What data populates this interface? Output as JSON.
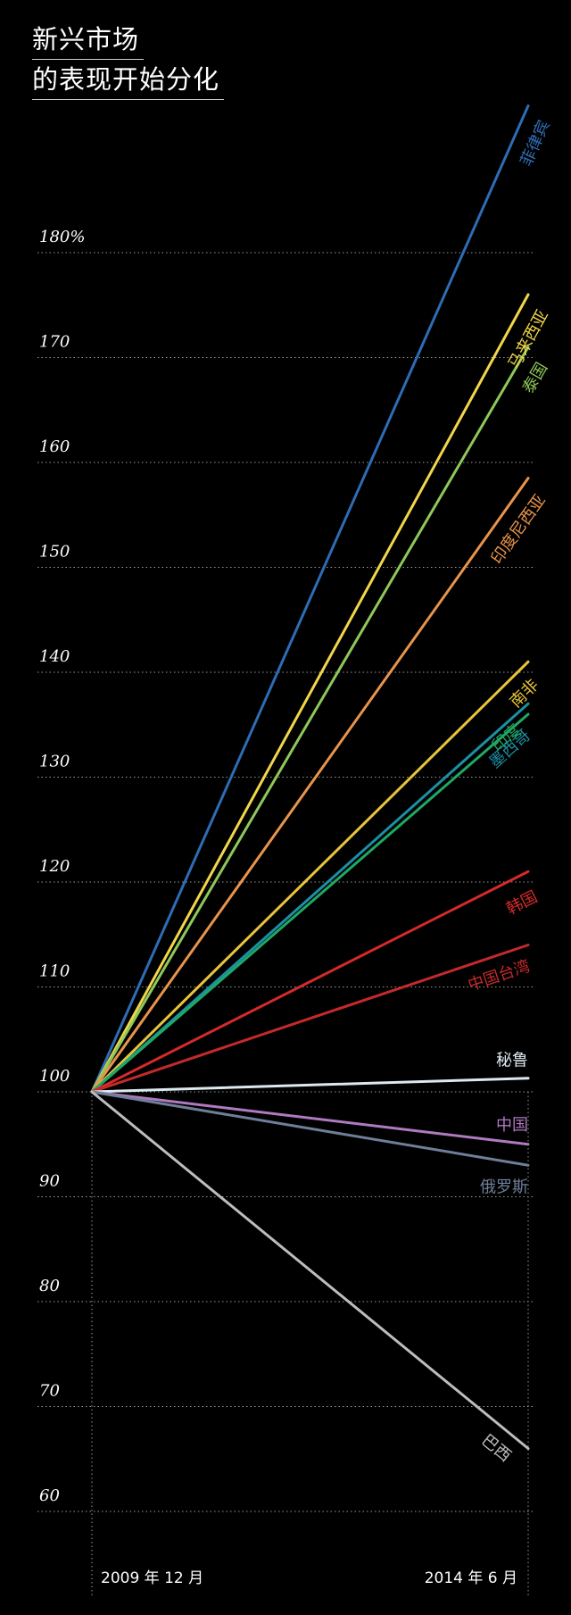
{
  "title": {
    "line1": "新兴市场",
    "line2": "的表现开始分化"
  },
  "chart_data": {
    "type": "line",
    "title": "新兴市场的表现开始分化",
    "x": [
      "2009 年 12 月",
      "2014 年 6 月"
    ],
    "yticks": [
      "180%",
      "170",
      "160",
      "150",
      "140",
      "130",
      "120",
      "110",
      "100",
      "90",
      "80",
      "70",
      "60"
    ],
    "ylim": [
      58,
      195
    ],
    "grid": true,
    "series": [
      {
        "name": "菲律宾",
        "values": [
          100,
          194
        ],
        "color": "#2e6db4"
      },
      {
        "name": "马来西亚",
        "values": [
          100,
          176
        ],
        "color": "#f2d64a"
      },
      {
        "name": "泰国",
        "values": [
          100,
          171
        ],
        "color": "#8fc85a"
      },
      {
        "name": "印度尼西亚",
        "values": [
          100,
          158.5
        ],
        "color": "#e8944a"
      },
      {
        "name": "南非",
        "values": [
          100,
          141
        ],
        "color": "#e8c43a"
      },
      {
        "name": "墨西哥",
        "values": [
          100,
          137
        ],
        "color": "#1b8fa6"
      },
      {
        "name": "印度",
        "values": [
          100,
          136
        ],
        "color": "#1fa864"
      },
      {
        "name": "韩国",
        "values": [
          100,
          121
        ],
        "color": "#d42a2a"
      },
      {
        "name": "中国台湾",
        "values": [
          100,
          114
        ],
        "color": "#c42a2a"
      },
      {
        "name": "秘鲁",
        "values": [
          100,
          101.3
        ],
        "color": "#dde8ef"
      },
      {
        "name": "中国",
        "values": [
          100,
          95
        ],
        "color": "#b07ac0"
      },
      {
        "name": "俄罗斯",
        "values": [
          100,
          93
        ],
        "color": "#6f7f99"
      },
      {
        "name": "巴西",
        "values": [
          100,
          66
        ],
        "color": "#bdbdbd"
      }
    ]
  }
}
